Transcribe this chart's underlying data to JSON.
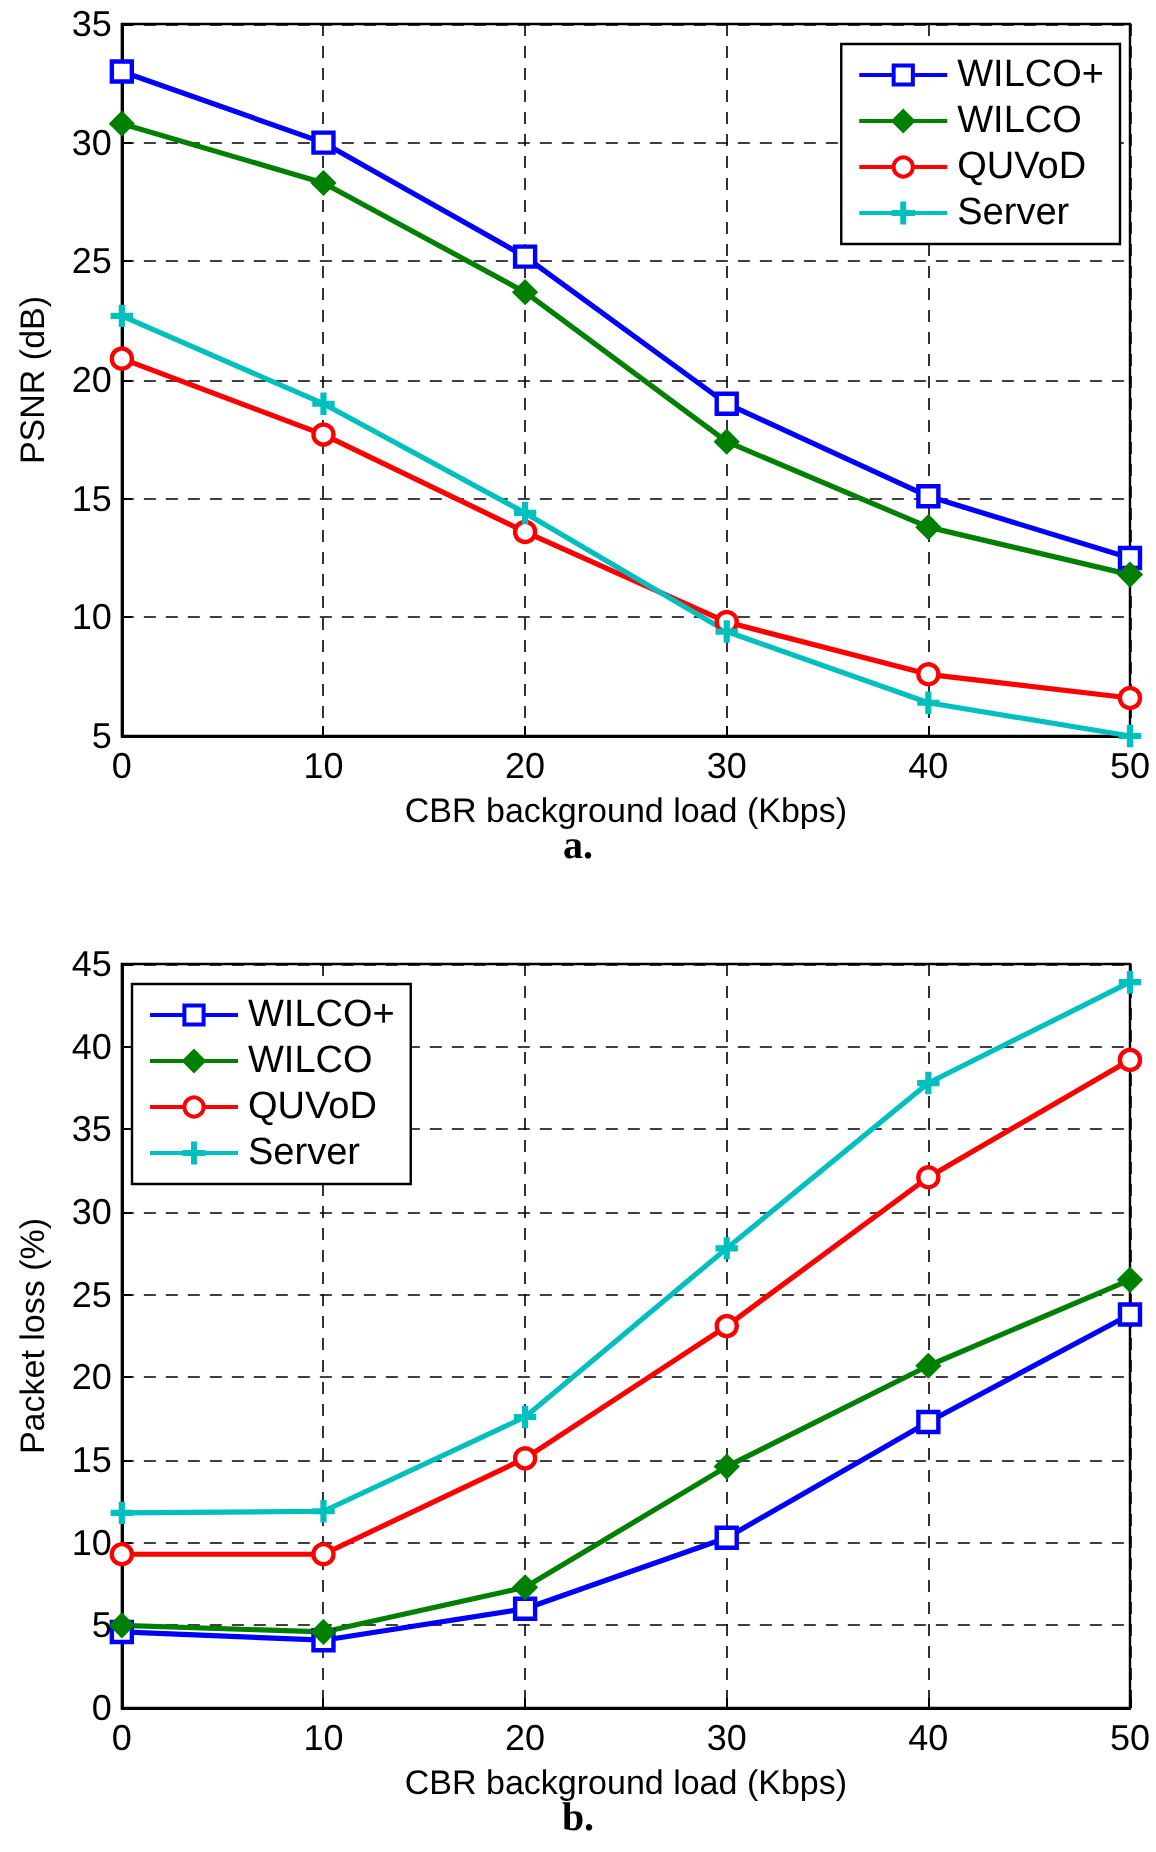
{
  "chart_data": [
    {
      "type": "line",
      "title": "a.",
      "xlabel": "CBR background load (Kbps)",
      "ylabel": "PSNR (dB)",
      "x": [
        0,
        10,
        20,
        30,
        40,
        50
      ],
      "xlim": [
        0,
        50
      ],
      "xticks": [
        0,
        10,
        20,
        30,
        40,
        50
      ],
      "ylim": [
        5,
        35
      ],
      "yticks": [
        5,
        10,
        15,
        20,
        25,
        30,
        35
      ],
      "grid": true,
      "legend": "top right",
      "line_style": "solid",
      "series": [
        {
          "name": "WILCO+",
          "color": "#0000ff",
          "marker": "square",
          "values": [
            33,
            30,
            25.2,
            19,
            15.1,
            12.5
          ]
        },
        {
          "name": "WILCO",
          "color": "#008000",
          "marker": "diamond",
          "values": [
            30.8,
            28.3,
            23.7,
            17.4,
            13.8,
            11.8
          ]
        },
        {
          "name": "QUVoD",
          "color": "#ff0000",
          "marker": "circle",
          "values": [
            20.9,
            17.7,
            13.6,
            9.8,
            7.6,
            6.6
          ]
        },
        {
          "name": "Server",
          "color": "#00bfbf",
          "marker": "cross",
          "values": [
            22.7,
            19.0,
            14.4,
            9.4,
            6.4,
            5.0
          ]
        }
      ]
    },
    {
      "type": "line",
      "title": "b.",
      "xlabel": "CBR background load (Kbps)",
      "ylabel": "Packet loss (%)",
      "x": [
        0,
        10,
        20,
        30,
        40,
        50
      ],
      "xlim": [
        0,
        50
      ],
      "xticks": [
        0,
        10,
        20,
        30,
        40,
        50
      ],
      "ylim": [
        0,
        45
      ],
      "yticks": [
        0,
        5,
        10,
        15,
        20,
        25,
        30,
        35,
        40,
        45
      ],
      "grid": true,
      "legend": "top left",
      "line_style": "solid",
      "series": [
        {
          "name": "WILCO+",
          "color": "#0000ff",
          "marker": "square",
          "values": [
            4.6,
            4.1,
            6.0,
            10.3,
            17.3,
            23.8
          ]
        },
        {
          "name": "WILCO",
          "color": "#008000",
          "marker": "diamond",
          "values": [
            5.0,
            4.6,
            7.3,
            14.6,
            20.7,
            25.9
          ]
        },
        {
          "name": "QUVoD",
          "color": "#ff0000",
          "marker": "circle",
          "values": [
            9.3,
            9.3,
            15.1,
            23.1,
            32.1,
            39.2
          ]
        },
        {
          "name": "Server",
          "color": "#00bfbf",
          "marker": "cross",
          "values": [
            11.8,
            11.9,
            17.6,
            27.8,
            37.8,
            43.9
          ]
        }
      ]
    }
  ]
}
